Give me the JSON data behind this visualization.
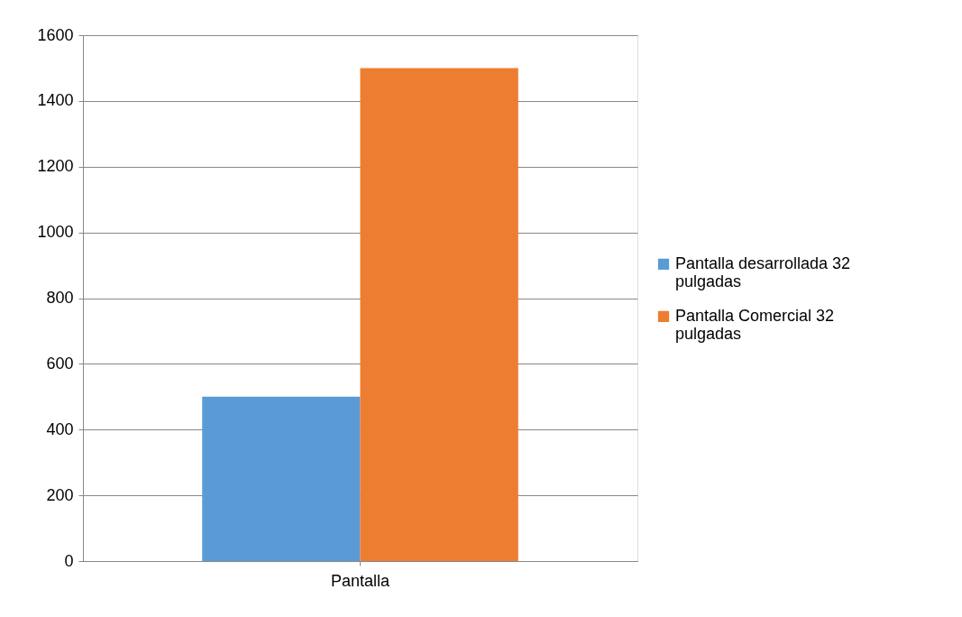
{
  "chart_data": {
    "type": "bar",
    "categories": [
      "Pantalla"
    ],
    "series": [
      {
        "name": "Pantalla desarrollada 32 pulgadas",
        "color": "#5b9bd5",
        "values": [
          500
        ]
      },
      {
        "name": "Pantalla Comercial 32 pulgadas",
        "color": "#ed7d31",
        "values": [
          1500
        ]
      }
    ],
    "ylim": [
      0,
      1600
    ],
    "yticks": [
      0,
      200,
      400,
      600,
      800,
      1000,
      1200,
      1400,
      1600
    ],
    "grid": "y",
    "legend": "right"
  }
}
